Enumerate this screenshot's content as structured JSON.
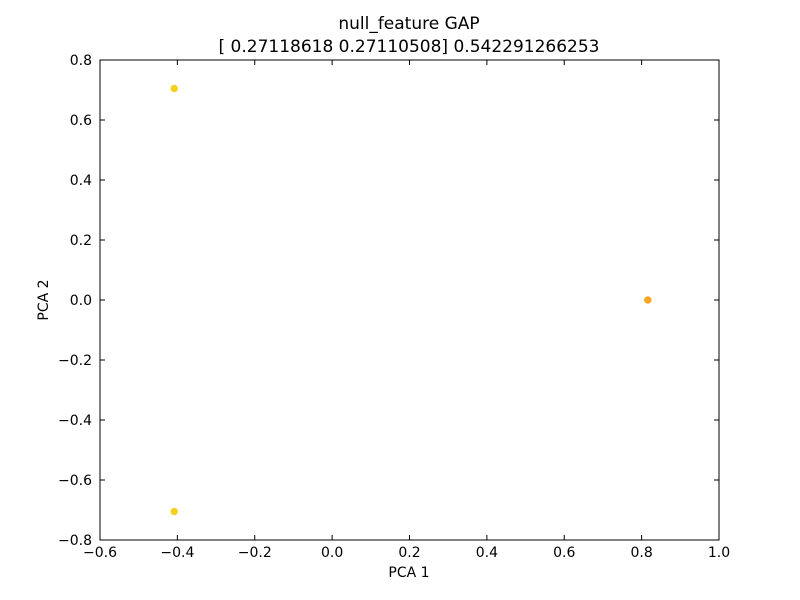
{
  "chart_data": {
    "type": "scatter",
    "title": "null_feature GAP",
    "subtitle": "[ 0.27118618  0.27110508] 0.542291266253",
    "xlabel": "PCA 1",
    "ylabel": "PCA 2",
    "xlim": [
      -0.6,
      1.0
    ],
    "ylim": [
      -0.8,
      0.8
    ],
    "xticks": [
      -0.6,
      -0.4,
      -0.2,
      0.0,
      0.2,
      0.4,
      0.6,
      0.8,
      1.0
    ],
    "yticks": [
      -0.8,
      -0.6,
      -0.4,
      -0.2,
      0.0,
      0.2,
      0.4,
      0.6,
      0.8
    ],
    "xtick_labels": [
      "−0.6",
      "−0.4",
      "−0.2",
      "0.0",
      "0.2",
      "0.4",
      "0.6",
      "0.8",
      "1.0"
    ],
    "ytick_labels": [
      "−0.8",
      "−0.6",
      "−0.4",
      "−0.2",
      "0.0",
      "0.2",
      "0.4",
      "0.6",
      "0.8"
    ],
    "grid": false,
    "points": [
      {
        "x": -0.408,
        "y": 0.705,
        "color": "#f2d21a"
      },
      {
        "x": -0.408,
        "y": -0.705,
        "color": "#f2d21a"
      },
      {
        "x": 0.816,
        "y": 0.0,
        "color": "#f5a623"
      }
    ]
  }
}
